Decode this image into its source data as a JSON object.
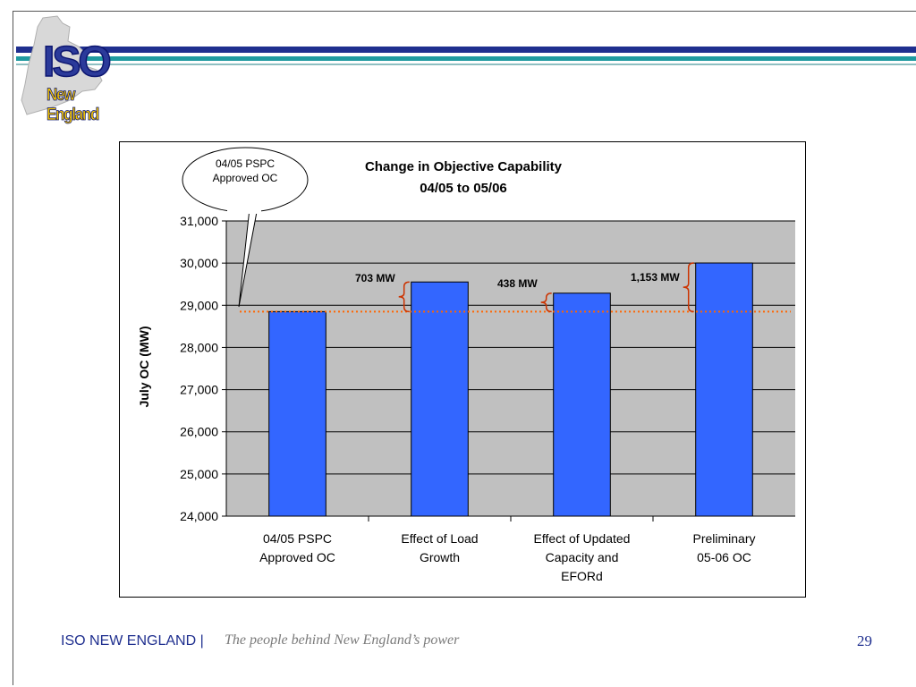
{
  "header": {
    "logo_main": "ISO",
    "logo_sub": "New England",
    "colors": {
      "navy": "#1f2f8f",
      "teal": "#1f9aa0"
    }
  },
  "footer": {
    "brand": "ISO NEW ENGLAND |",
    "tagline": "The people behind New England’s power",
    "page_number": "29"
  },
  "callout": {
    "line1": "04/05 PSPC",
    "line2": "Approved OC"
  },
  "chart_data": {
    "type": "bar",
    "title": "Change in Objective Capability",
    "subtitle": "04/05 to 05/06",
    "ylabel": "July OC (MW)",
    "ylim": [
      24000,
      31000
    ],
    "yticks": [
      24000,
      25000,
      26000,
      27000,
      28000,
      29000,
      30000,
      31000
    ],
    "ytick_labels": [
      "24,000",
      "25,000",
      "26,000",
      "27,000",
      "28,000",
      "29,000",
      "30,000",
      "31,000"
    ],
    "categories": [
      [
        "04/05 PSPC",
        "Approved OC"
      ],
      [
        "Effect of Load",
        "Growth"
      ],
      [
        "Effect of Updated",
        "Capacity and",
        "EFORd"
      ],
      [
        "Preliminary",
        "05-06 OC"
      ]
    ],
    "values": [
      28850,
      29553,
      29288,
      30003
    ],
    "bar_color": "#3366ff",
    "plot_background": "#c0c0c0",
    "grid": true,
    "reference_line": {
      "value": 28850,
      "color": "#ff6600",
      "style": "dotted"
    },
    "annotations": [
      {
        "label": "703 MW",
        "bar_index": 1,
        "from": 28850,
        "to": 29553
      },
      {
        "label": "438 MW",
        "bar_index": 2,
        "from": 28850,
        "to": 29288
      },
      {
        "label": "1,153 MW",
        "bar_index": 3,
        "from": 28850,
        "to": 30003
      }
    ]
  }
}
